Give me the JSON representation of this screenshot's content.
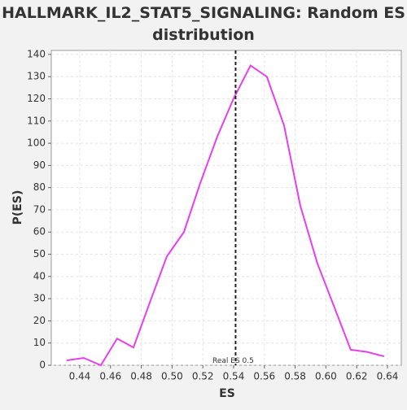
{
  "chart_data": {
    "type": "line",
    "title": "HALLMARK_IL2_STAT5_SIGNALING: Random ES distribution",
    "xlabel": "ES",
    "ylabel": "P(ES)",
    "x": [
      0.4315,
      0.4426,
      0.4537,
      0.4643,
      0.4749,
      0.4854,
      0.4966,
      0.5077,
      0.5183,
      0.5294,
      0.5399,
      0.551,
      0.5616,
      0.5728,
      0.5833,
      0.5944,
      0.605,
      0.6161,
      0.6267,
      0.6378
    ],
    "series": [
      {
        "color": "#e83ef0",
        "values": [
          2.2,
          3.3,
          0,
          12,
          8,
          28,
          49,
          60,
          82,
          103,
          120,
          135,
          130,
          108,
          72,
          46,
          27,
          7,
          6,
          4
        ]
      }
    ],
    "xlim": [
      0.4215,
      0.649
    ],
    "ylim": [
      0,
      141.8
    ],
    "xticks": [
      0.44,
      0.46,
      0.48,
      {
        "value": 0.5,
        "label": "0.50"
      },
      0.52,
      0.54,
      0.56,
      0.58,
      {
        "value": 0.6,
        "label": "0.60"
      },
      0.62,
      0.64
    ],
    "yticks": [
      0,
      10,
      20,
      30,
      40,
      50,
      60,
      70,
      80,
      90,
      100,
      110,
      120,
      130,
      140
    ],
    "grid": true,
    "marker": {
      "x": 0.5413,
      "label": "Real ES 0.5"
    }
  }
}
